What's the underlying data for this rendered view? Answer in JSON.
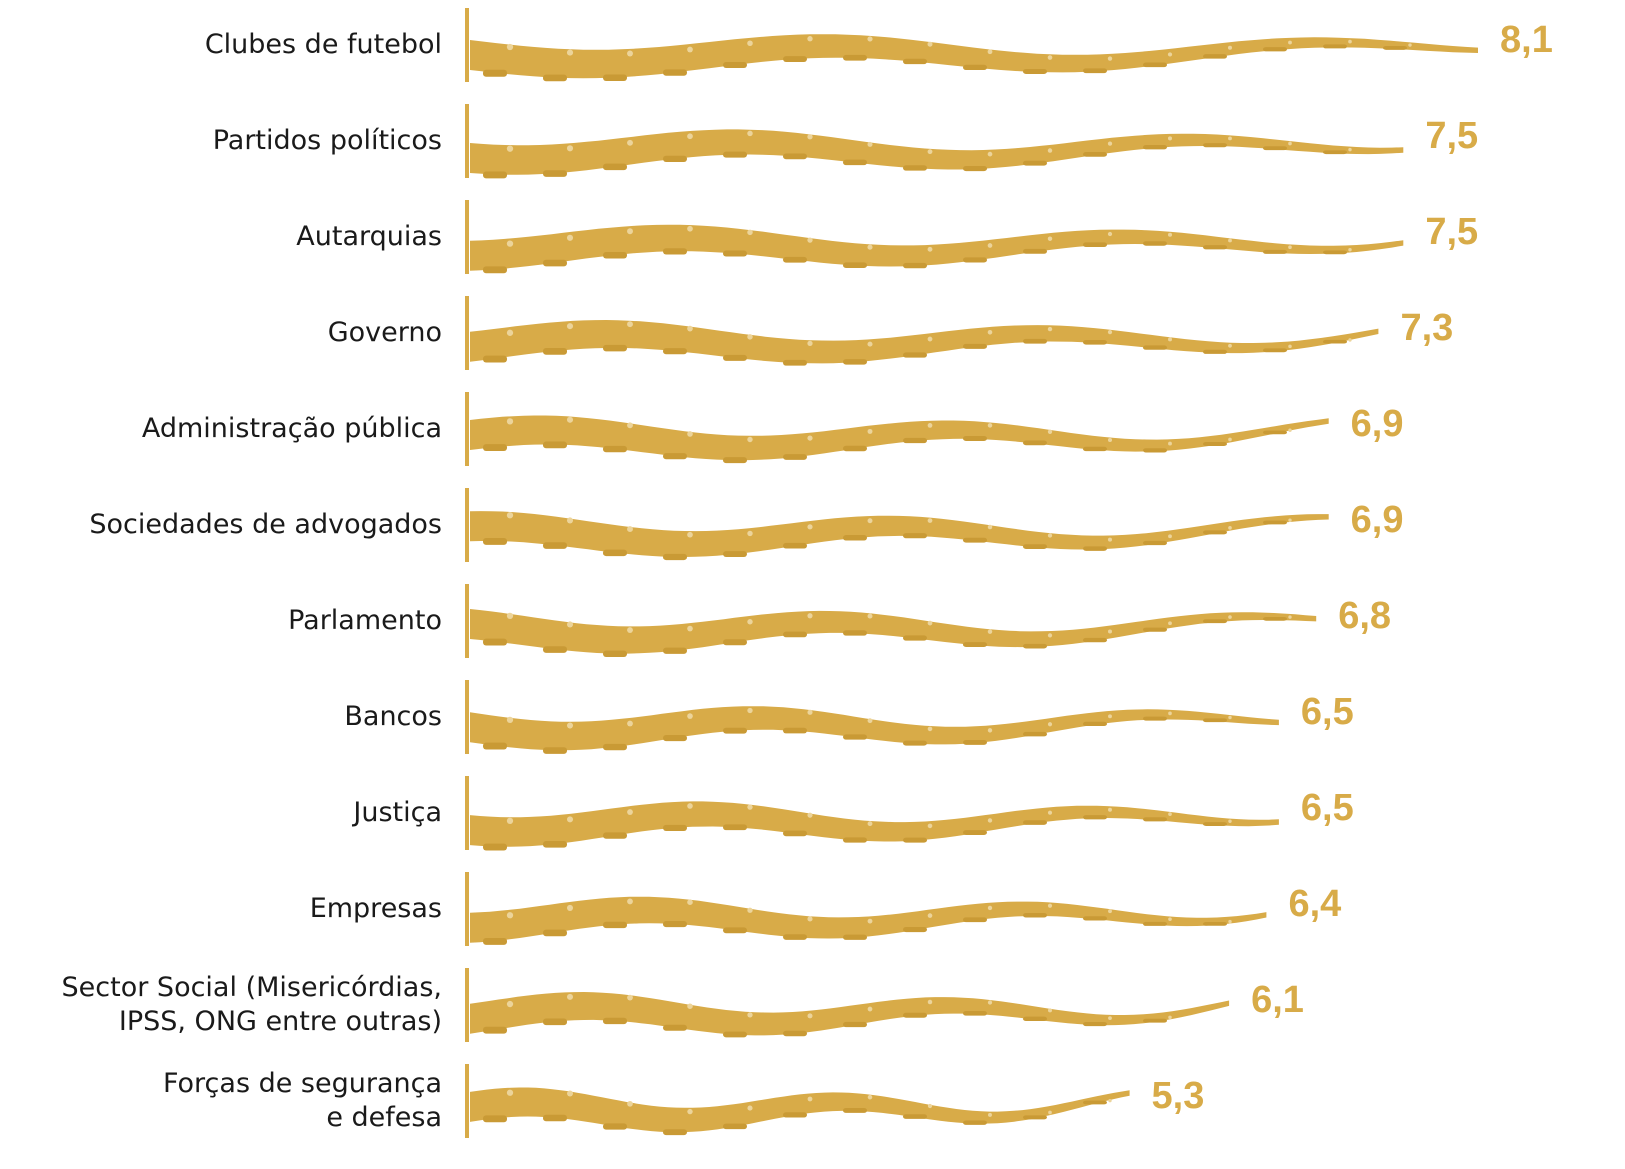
{
  "chart_data": {
    "type": "bar",
    "orientation": "horizontal",
    "categories": [
      "Clubes de futebol",
      "Partidos políticos",
      "Autarquias",
      "Governo",
      "Administração pública",
      "Sociedades de advogados",
      "Parlamento",
      "Bancos",
      "Justiça",
      "Empresas",
      "Sector Social (Misericórdias,\nIPSS, ONG entre outras)",
      "Forças de segurança\ne defesa"
    ],
    "values": [
      8.1,
      7.5,
      7.5,
      7.3,
      6.9,
      6.9,
      6.8,
      6.5,
      6.5,
      6.4,
      6.1,
      5.3
    ],
    "value_labels": [
      "8,1",
      "7,5",
      "7,5",
      "7,3",
      "6,9",
      "6,9",
      "6,8",
      "6,5",
      "6,5",
      "6,4",
      "6,1",
      "5,3"
    ],
    "color": "#d8ab48",
    "xlim": [
      0,
      8.1
    ]
  }
}
